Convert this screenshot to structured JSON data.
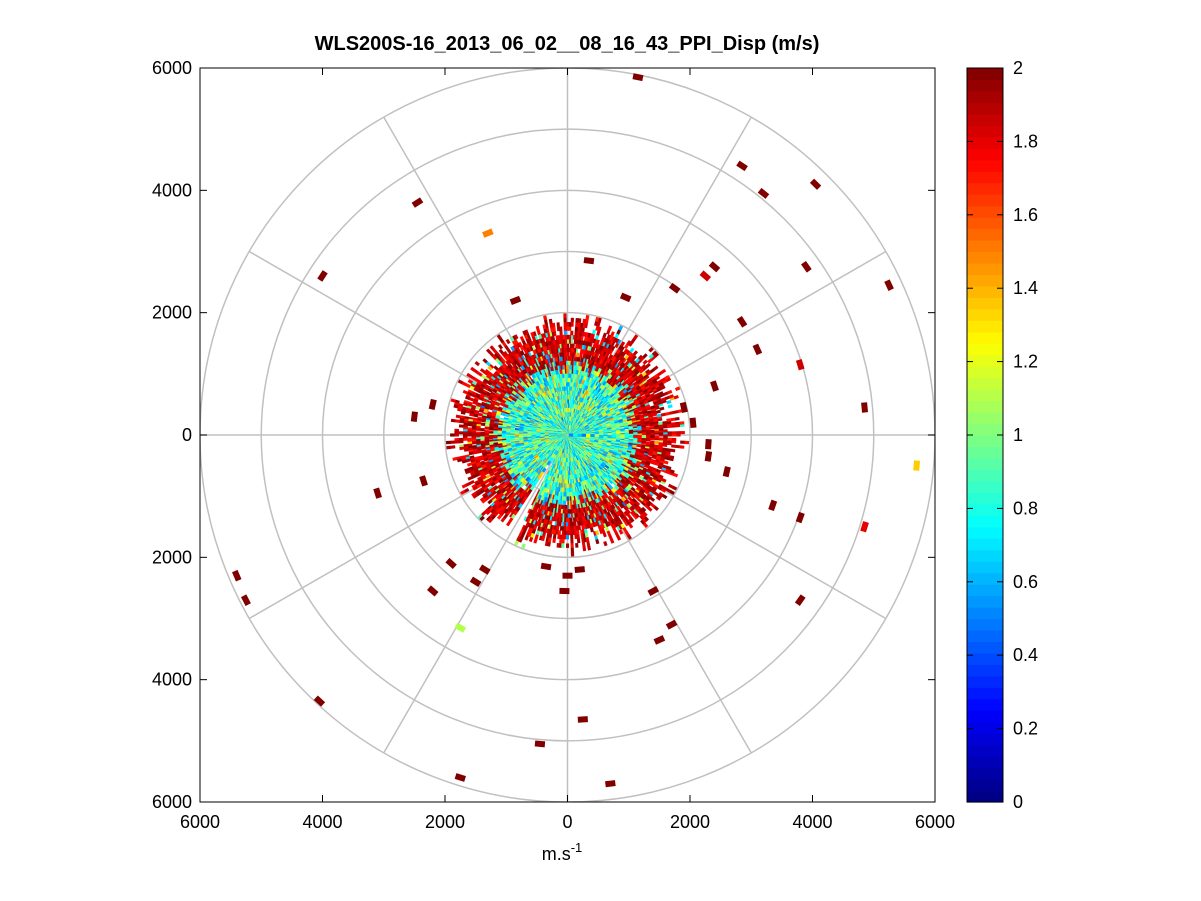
{
  "chart_data": {
    "type": "scatter",
    "projection": "polar-ppi",
    "title": "WLS200S-16_2013_06_02__08_16_43_PPI_Disp (m/s)",
    "xlabel_base": "m.s",
    "xlabel_sup": "-1",
    "xlim": [
      -6000,
      6000
    ],
    "ylim": [
      -6000,
      6000
    ],
    "x_ticks": [
      -6000,
      -4000,
      -2000,
      0,
      2000,
      4000,
      6000
    ],
    "x_tick_labels": [
      "6000",
      "4000",
      "2000",
      "0",
      "2000",
      "4000",
      "6000"
    ],
    "y_ticks": [
      6000,
      4000,
      2000,
      0,
      -2000,
      -4000,
      -6000
    ],
    "y_tick_labels": [
      "6000",
      "4000",
      "2000",
      "0",
      "2000",
      "4000",
      "6000"
    ],
    "range_rings": [
      1000,
      2000,
      3000,
      4000,
      5000,
      6000
    ],
    "spoke_angles_deg": [
      0,
      30,
      60,
      90,
      120,
      150,
      180,
      210,
      240,
      270,
      300,
      330
    ],
    "grid": true,
    "colorbar": {
      "colormap": "jet",
      "min": 0,
      "max": 2,
      "ticks": [
        0,
        0.2,
        0.4,
        0.6,
        0.8,
        1,
        1.2,
        1.4,
        1.6,
        1.8,
        2
      ],
      "tick_labels": [
        "0",
        "0.2",
        "0.4",
        "0.6",
        "0.8",
        "1",
        "1.2",
        "1.4",
        "1.6",
        "1.8",
        "2"
      ],
      "placement": "right"
    },
    "dense_region": {
      "max_range": 2000,
      "inner_range": 1100,
      "inner_value_mean": 0.85,
      "outer_value": 2.0,
      "gap_angle_deg": [
        237,
        243
      ]
    },
    "points": [
      {
        "x": 1150,
        "y": 5850,
        "v": 2.0
      },
      {
        "x": 2850,
        "y": 4400,
        "v": 2.0
      },
      {
        "x": 3200,
        "y": 3950,
        "v": 2.0
      },
      {
        "x": 4050,
        "y": 4100,
        "v": 2.0
      },
      {
        "x": -2450,
        "y": 3800,
        "v": 2.0
      },
      {
        "x": -1300,
        "y": 3300,
        "v": 1.5
      },
      {
        "x": -4000,
        "y": 2600,
        "v": 2.0
      },
      {
        "x": 350,
        "y": 2850,
        "v": 2.0
      },
      {
        "x": 2250,
        "y": 2600,
        "v": 1.85
      },
      {
        "x": 2400,
        "y": 2750,
        "v": 2.0
      },
      {
        "x": 3900,
        "y": 2750,
        "v": 2.0
      },
      {
        "x": 5250,
        "y": 2450,
        "v": 2.0
      },
      {
        "x": 1750,
        "y": 2400,
        "v": 2.0
      },
      {
        "x": 950,
        "y": 2250,
        "v": 2.0
      },
      {
        "x": -850,
        "y": 2200,
        "v": 2.0
      },
      {
        "x": 2850,
        "y": 1850,
        "v": 2.0
      },
      {
        "x": 3100,
        "y": 1400,
        "v": 2.0
      },
      {
        "x": 3800,
        "y": 1150,
        "v": 1.85
      },
      {
        "x": 4850,
        "y": 450,
        "v": 2.0
      },
      {
        "x": 5700,
        "y": -500,
        "v": 1.35
      },
      {
        "x": 4850,
        "y": -1500,
        "v": 1.8
      },
      {
        "x": 3350,
        "y": -1150,
        "v": 2.0
      },
      {
        "x": 3800,
        "y": -1350,
        "v": 2.0
      },
      {
        "x": 2600,
        "y": -600,
        "v": 2.0
      },
      {
        "x": 2300,
        "y": -350,
        "v": 2.0
      },
      {
        "x": 2050,
        "y": 200,
        "v": 2.0
      },
      {
        "x": 1900,
        "y": 450,
        "v": 2.0
      },
      {
        "x": -2500,
        "y": 300,
        "v": 2.0
      },
      {
        "x": -2350,
        "y": -750,
        "v": 2.0
      },
      {
        "x": -3100,
        "y": -950,
        "v": 2.0
      },
      {
        "x": -5400,
        "y": -2300,
        "v": 2.0
      },
      {
        "x": -5250,
        "y": -2700,
        "v": 2.0
      },
      {
        "x": -2200,
        "y": -2550,
        "v": 2.0
      },
      {
        "x": -1750,
        "y": -3150,
        "v": 1.1
      },
      {
        "x": -1350,
        "y": -2200,
        "v": 2.0
      },
      {
        "x": -1500,
        "y": -2400,
        "v": 2.0
      },
      {
        "x": -1900,
        "y": -2100,
        "v": 2.0
      },
      {
        "x": -4050,
        "y": -4350,
        "v": 2.0
      },
      {
        "x": -1750,
        "y": -5600,
        "v": 2.0
      },
      {
        "x": -450,
        "y": -5050,
        "v": 2.0
      },
      {
        "x": 250,
        "y": -4650,
        "v": 2.0
      },
      {
        "x": 700,
        "y": -5700,
        "v": 2.0
      },
      {
        "x": 1500,
        "y": -3350,
        "v": 2.0
      },
      {
        "x": 1700,
        "y": -3100,
        "v": 2.0
      },
      {
        "x": 1400,
        "y": -2550,
        "v": 2.0
      },
      {
        "x": 3800,
        "y": -2700,
        "v": 2.0
      },
      {
        "x": 0,
        "y": -2300,
        "v": 2.0
      },
      {
        "x": -50,
        "y": -2550,
        "v": 2.0
      },
      {
        "x": -350,
        "y": -2150,
        "v": 2.0
      },
      {
        "x": 200,
        "y": -2200,
        "v": 2.0
      },
      {
        "x": 2400,
        "y": 800,
        "v": 2.0
      },
      {
        "x": -2200,
        "y": 500,
        "v": 2.0
      },
      {
        "x": 2300,
        "y": -150,
        "v": 2.0
      }
    ]
  }
}
